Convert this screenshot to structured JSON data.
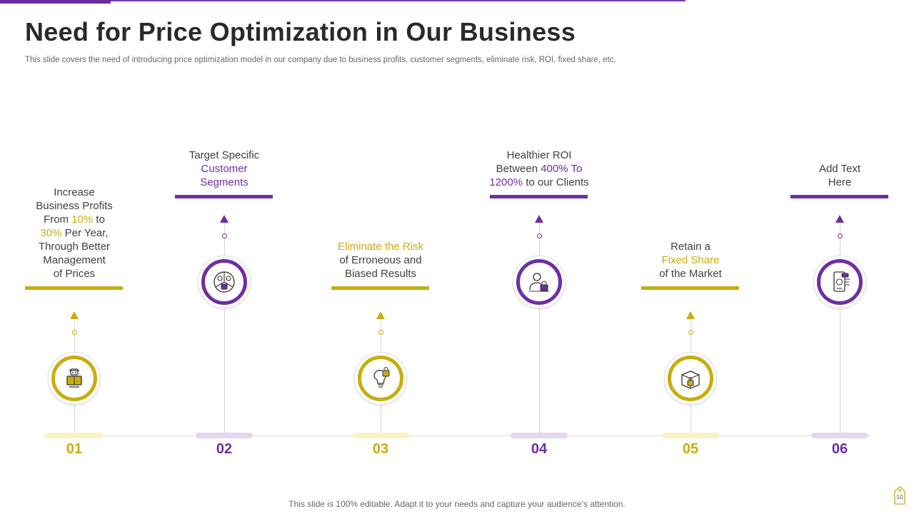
{
  "slide": {
    "title": "Need for Price Optimization in Our Business",
    "subtitle": "This slide covers the need of introducing price optimization model in our company due to business profits, customer segments, eliminate risk, ROI, fixed share, etc.",
    "footer": "This slide is 100% editable. Adapt it to your needs and capture your audience’s attention.",
    "page_number": "10"
  },
  "colors": {
    "yellow": "#c9ad10",
    "purple": "#6e2ea3",
    "yellow_pill": "#fbf2c4",
    "purple_pill": "#e4d7ef"
  },
  "steps": [
    {
      "number": "01",
      "icon": "robot-icon",
      "lines": [
        [
          {
            "t": "Increase"
          }
        ],
        [
          {
            "t": "Business Profits"
          }
        ],
        [
          {
            "t": "From "
          },
          {
            "t": "10%",
            "hl": true
          },
          {
            "t": " to"
          }
        ],
        [
          {
            "t": "30%",
            "hl": true
          },
          {
            "t": " Per Year,"
          }
        ],
        [
          {
            "t": "Through Better"
          }
        ],
        [
          {
            "t": "Management"
          }
        ],
        [
          {
            "t": "of Prices"
          }
        ]
      ]
    },
    {
      "number": "02",
      "icon": "customer-segments-icon",
      "lines": [
        [
          {
            "t": "Target Specific"
          }
        ],
        [
          {
            "t": "Customer",
            "hl": true
          }
        ],
        [
          {
            "t": "Segments",
            "hl": true
          }
        ]
      ]
    },
    {
      "number": "03",
      "icon": "lightbulb-lock-icon",
      "lines": [
        [
          {
            "t": "Eliminate the Risk",
            "hl": true
          }
        ],
        [
          {
            "t": "of Erroneous and"
          }
        ],
        [
          {
            "t": "Biased Results"
          }
        ]
      ]
    },
    {
      "number": "04",
      "icon": "person-lock-icon",
      "lines": [
        [
          {
            "t": "Healthier ROI"
          }
        ],
        [
          {
            "t": "Between "
          },
          {
            "t": "400% To",
            "hl": true
          }
        ],
        [
          {
            "t": "1200%",
            "hl": true
          },
          {
            "t": " to our Clients"
          }
        ]
      ]
    },
    {
      "number": "05",
      "icon": "box-lock-icon",
      "lines": [
        [
          {
            "t": "Retain a"
          }
        ],
        [
          {
            "t": "Fixed Share",
            "hl": true
          }
        ],
        [
          {
            "t": "of the Market"
          }
        ]
      ]
    },
    {
      "number": "06",
      "icon": "mobile-dashboard-icon",
      "lines": [
        [
          {
            "t": "Add Text"
          }
        ],
        [
          {
            "t": "Here"
          }
        ]
      ]
    }
  ]
}
